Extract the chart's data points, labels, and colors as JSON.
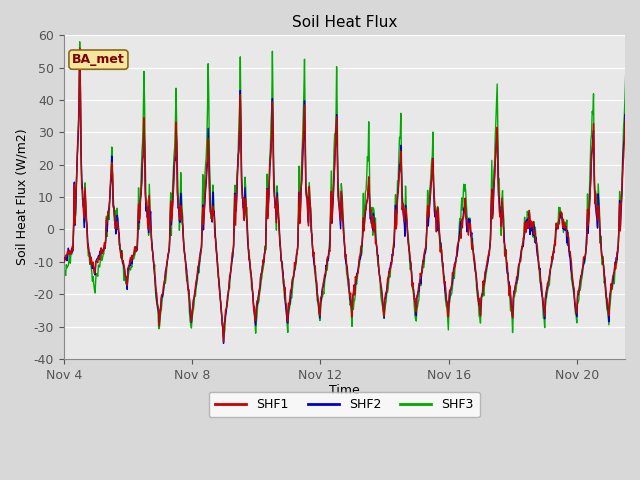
{
  "title": "Soil Heat Flux",
  "ylabel": "Soil Heat Flux (W/m2)",
  "xlabel": "Time",
  "ylim": [
    -40,
    60
  ],
  "bg_color": "#d8d8d8",
  "plot_bg_color": "#e8e8e8",
  "legend_label": "BA_met",
  "series": [
    "SHF1",
    "SHF2",
    "SHF3"
  ],
  "colors": [
    "#cc0000",
    "#0000cc",
    "#00aa00"
  ],
  "xtick_labels": [
    "Nov 4",
    "Nov 8",
    "Nov 12",
    "Nov 16",
    "Nov 20"
  ],
  "xtick_pos": [
    0,
    4,
    8,
    12,
    16
  ],
  "ytick_positions": [
    -40,
    -30,
    -20,
    -10,
    0,
    10,
    20,
    30,
    40,
    50,
    60
  ],
  "title_fontsize": 11,
  "axis_fontsize": 9,
  "tick_fontsize": 9,
  "line_width": 1.0,
  "xlim": [
    0,
    17.5
  ]
}
